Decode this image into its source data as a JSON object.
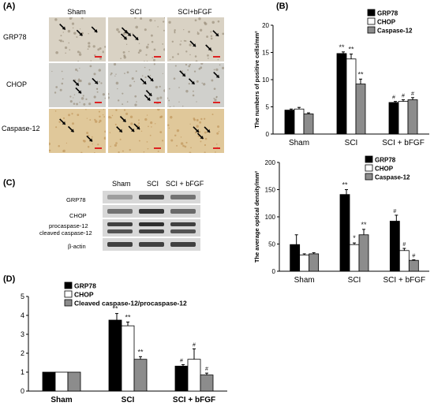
{
  "panels": {
    "a": "(A)",
    "b": "(B)",
    "c": "(C)",
    "d": "(D)"
  },
  "micro": {
    "cols": [
      "Sham",
      "SCI",
      "SCI+bFGF"
    ],
    "rows": [
      "GRP78",
      "CHOP",
      "Caspase-12"
    ],
    "colors": {
      "GRP78": "#d9d2c4",
      "CHOP": "#d0d0cc",
      "Caspase-12": "#e0c89a"
    }
  },
  "blot": {
    "cols": [
      "Sham",
      "SCI",
      "SCI + bFGF"
    ],
    "rows": [
      "GRP78",
      "CHOP",
      "procaspase-12",
      "cleaved caspase-12",
      "β-actin"
    ]
  },
  "chart_data": [
    {
      "id": "b1",
      "type": "bar",
      "categories": [
        "Sham",
        "SCI",
        "SCI + bFGF"
      ],
      "ylabel": "The numbers of positive cells/mm²",
      "ylim": [
        0,
        20
      ],
      "yticks": [
        0,
        5,
        10,
        15,
        20
      ],
      "legend_position": "top-right",
      "series": [
        {
          "name": "GRP78",
          "values": [
            4.4,
            14.8,
            5.8
          ],
          "errors": [
            0.2,
            0.3,
            0.2
          ],
          "marks": [
            "",
            "**",
            "#"
          ]
        },
        {
          "name": "CHOP",
          "values": [
            4.6,
            13.8,
            6.0
          ],
          "errors": [
            0.3,
            0.9,
            0.3
          ],
          "marks": [
            "",
            "**",
            "#"
          ]
        },
        {
          "name": "Caspase-12",
          "values": [
            3.7,
            9.2,
            6.3
          ],
          "errors": [
            0.2,
            0.9,
            0.4
          ],
          "marks": [
            "",
            "**",
            "#"
          ]
        }
      ]
    },
    {
      "id": "b2",
      "type": "bar",
      "categories": [
        "Sham",
        "SCI",
        "SCI + bFGF"
      ],
      "ylabel": "The average optical density/mm²",
      "ylim": [
        0,
        200
      ],
      "yticks": [
        0,
        50,
        100,
        150,
        200
      ],
      "legend_position": "top-right",
      "series": [
        {
          "name": "GRP78",
          "values": [
            49,
            141,
            92
          ],
          "errors": [
            18,
            9,
            11
          ],
          "marks": [
            "",
            "**",
            "#"
          ]
        },
        {
          "name": "CHOP",
          "values": [
            30,
            49,
            38
          ],
          "errors": [
            2,
            3,
            4
          ],
          "marks": [
            "",
            "*",
            "#"
          ]
        },
        {
          "name": "Caspase-12",
          "values": [
            32,
            67,
            20
          ],
          "errors": [
            2,
            10,
            1
          ],
          "marks": [
            "",
            "**",
            "#"
          ]
        }
      ]
    },
    {
      "id": "d",
      "type": "bar",
      "categories": [
        "Sham",
        "SCI",
        "SCI + bFGF"
      ],
      "ylim": [
        0,
        5
      ],
      "yticks": [
        0,
        1,
        2,
        3,
        4,
        5
      ],
      "legend_position": "top-left",
      "series": [
        {
          "name": "GRP78",
          "values": [
            1,
            3.75,
            1.32
          ],
          "errors": [
            0,
            0.35,
            0.08
          ],
          "marks": [
            "",
            "**",
            "#"
          ]
        },
        {
          "name": "CHOP",
          "values": [
            1,
            3.45,
            1.68
          ],
          "errors": [
            0,
            0.2,
            0.55
          ],
          "marks": [
            "",
            "**",
            "#"
          ]
        },
        {
          "name": "Cleaved caspase-12/procaspase-12",
          "values": [
            1,
            1.68,
            0.85
          ],
          "errors": [
            0,
            0.14,
            0.1
          ],
          "marks": [
            "",
            "**",
            "#"
          ]
        }
      ]
    }
  ],
  "colors": {
    "s0": "#000000",
    "s1": "#ffffff",
    "s2": "#8c8c8c"
  }
}
